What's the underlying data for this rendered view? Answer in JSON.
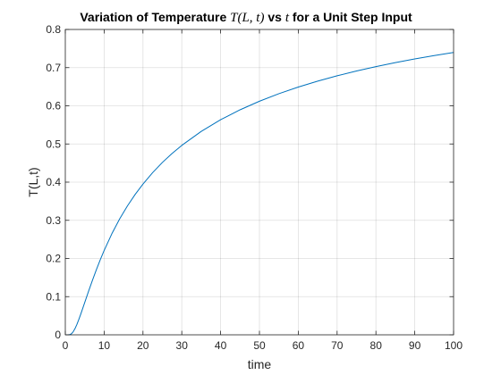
{
  "chart_data": {
    "type": "line",
    "title": {
      "prefix": "Variation of Temperature ",
      "math1": "T(L, t)",
      "middle": " vs ",
      "math2": "t",
      "suffix": " for a Unit Step Input"
    },
    "xlabel": "time",
    "ylabel": "T(L,t)",
    "xlim": [
      0,
      100
    ],
    "ylim": [
      0,
      0.8
    ],
    "xticks": [
      0,
      10,
      20,
      30,
      40,
      50,
      60,
      70,
      80,
      90,
      100
    ],
    "yticks": [
      0,
      0.1,
      0.2,
      0.3,
      0.4,
      0.5,
      0.6,
      0.7,
      0.8
    ],
    "xtick_labels": [
      "0",
      "10",
      "20",
      "30",
      "40",
      "50",
      "60",
      "70",
      "80",
      "90",
      "100"
    ],
    "ytick_labels": [
      "0",
      "0.1",
      "0.2",
      "0.3",
      "0.4",
      "0.5",
      "0.6",
      "0.7",
      "0.8"
    ],
    "grid": true,
    "box": true,
    "series": [
      {
        "color": "#0072bd",
        "x": [
          0,
          0.5,
          1,
          1.5,
          2,
          2.5,
          3,
          3.5,
          4,
          5,
          6,
          7,
          8,
          9,
          10,
          12,
          14,
          16,
          18,
          20,
          22.5,
          25,
          27.5,
          30,
          35,
          40,
          45,
          50,
          55,
          60,
          65,
          70,
          75,
          80,
          85,
          90,
          95,
          100
        ],
        "y": [
          0,
          0.0,
          0.0002,
          0.0021,
          0.0075,
          0.0163,
          0.0277,
          0.0407,
          0.0549,
          0.0846,
          0.1144,
          0.1432,
          0.1706,
          0.1966,
          0.2209,
          0.2651,
          0.3037,
          0.3377,
          0.368,
          0.395,
          0.425,
          0.4516,
          0.4752,
          0.4963,
          0.5329,
          0.5635,
          0.5895,
          0.612,
          0.6317,
          0.6491,
          0.6646,
          0.6786,
          0.6912,
          0.7026,
          0.7131,
          0.7227,
          0.7316,
          0.7398
        ]
      }
    ]
  }
}
